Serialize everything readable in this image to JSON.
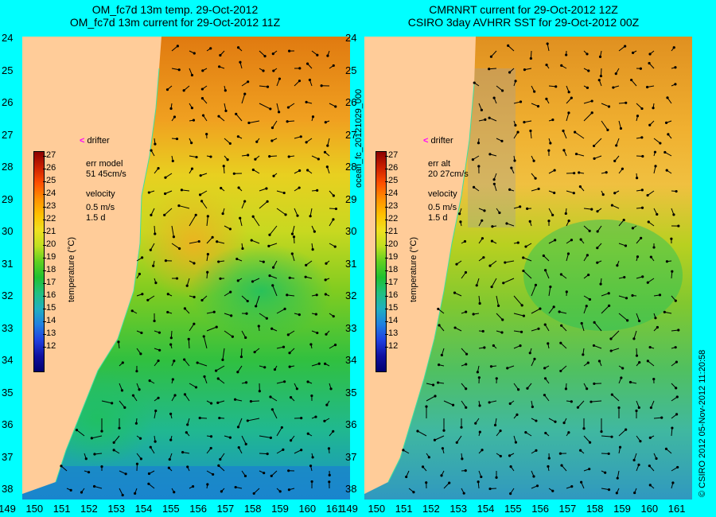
{
  "left_panel": {
    "title_line1": "OM_fc7d 13m temp. 29-Oct-2012",
    "title_line2": "OM_fc7d 13m current for 29-Oct-2012 11Z",
    "err_label": "err model",
    "err_value": "51 45cm/s",
    "velocity_label": "velocity",
    "velocity_scale": "0.5 m/s",
    "velocity_time": "1.5 d",
    "drifter_label": "drifter"
  },
  "right_panel": {
    "title_line1": "CMRNRT current for 29-Oct-2012 12Z",
    "title_line2": "CSIRO 3day AVHRR SST for 29-Oct-2012 00Z",
    "err_label": "err alt",
    "err_value": "20 27cm/s",
    "velocity_label": "velocity",
    "velocity_scale": "0.5 m/s",
    "velocity_time": "1.5 d",
    "drifter_label": "drifter"
  },
  "colorbar": {
    "label": "temperature (°C)",
    "ticks": [
      "27",
      "26",
      "25",
      "24",
      "23",
      "22",
      "21",
      "20",
      "19",
      "18",
      "17",
      "16",
      "15",
      "14",
      "13",
      "12"
    ]
  },
  "axes": {
    "latitudes": [
      "24",
      "25",
      "26",
      "27",
      "28",
      "29",
      "30",
      "31",
      "32",
      "33",
      "34",
      "35",
      "36",
      "37",
      "38"
    ],
    "longitudes": [
      "149",
      "150",
      "151",
      "152",
      "153",
      "154",
      "155",
      "156",
      "157",
      "158",
      "159",
      "160",
      "161"
    ]
  },
  "side_labels": {
    "middle": "ocean_fc_20121029_000",
    "right_bottom": "© CSIRO 2012    05-Nov-2012 11:20:58"
  },
  "colors": {
    "background": "#00ffff",
    "land": "#ffcc99",
    "drifter_marker": "#ff00ff"
  }
}
